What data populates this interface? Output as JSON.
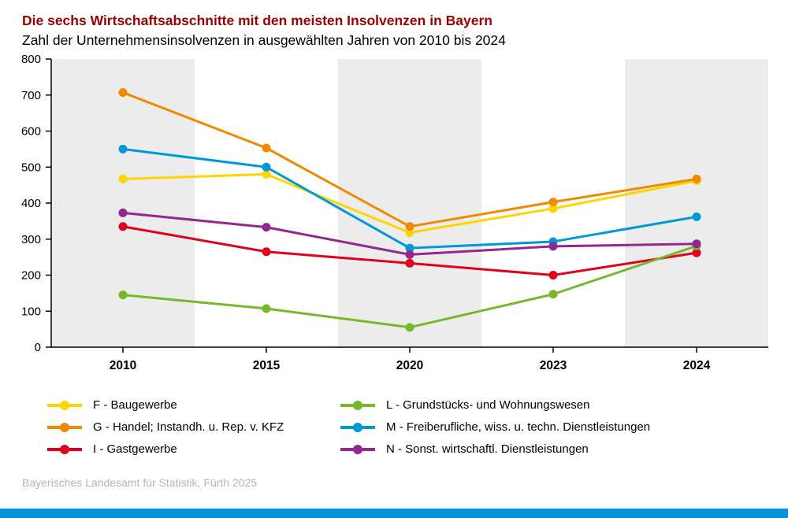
{
  "header": {
    "title": "Die sechs Wirtschaftsabschnitte mit den meisten Insolvenzen in Bayern",
    "subtitle": "Zahl der Unternehmensinsolvenzen in ausgewählten Jahren von 2010 bis 2024"
  },
  "footer": {
    "source": "Bayerisches Landesamt für Statistik, Fürth 2025"
  },
  "colors": {
    "title": "#990000",
    "footer_bar": "#0094d8",
    "band": "#ececec",
    "axis": "#000000"
  },
  "chart_data": {
    "type": "line",
    "title": "Die sechs Wirtschaftsabschnitte mit den meisten Insolvenzen in Bayern",
    "subtitle": "Zahl der Unternehmensinsolvenzen in ausgewählten Jahren von 2010 bis 2024",
    "categories": [
      "2010",
      "2015",
      "2020",
      "2023",
      "2024"
    ],
    "xlabel": "",
    "ylabel": "",
    "ylim": [
      0,
      800
    ],
    "ytick_step": 100,
    "grid": false,
    "legend_position": "bottom",
    "background_bands": "alternating",
    "series": [
      {
        "name": "F - Baugewerbe",
        "color": "#ffd500",
        "values": [
          467,
          480,
          318,
          385,
          462
        ]
      },
      {
        "name": "G - Handel; Instandh. u. Rep. v. KFZ",
        "color": "#f08a00",
        "values": [
          707,
          553,
          335,
          403,
          467
        ]
      },
      {
        "name": "I - Gastgewerbe",
        "color": "#e2001a",
        "values": [
          335,
          265,
          233,
          200,
          262
        ]
      },
      {
        "name": "L - Grundstücks- und Wohnungswesen",
        "color": "#76b82a",
        "values": [
          145,
          107,
          55,
          147,
          281
        ]
      },
      {
        "name": "M - Freiberufliche, wiss. u. techn. Dienstleistungen",
        "color": "#0099d8",
        "values": [
          550,
          500,
          275,
          293,
          362
        ]
      },
      {
        "name": "N - Sonst. wirtschaftl. Dienstleistungen",
        "color": "#93278f",
        "values": [
          373,
          333,
          257,
          280,
          287
        ]
      }
    ]
  }
}
